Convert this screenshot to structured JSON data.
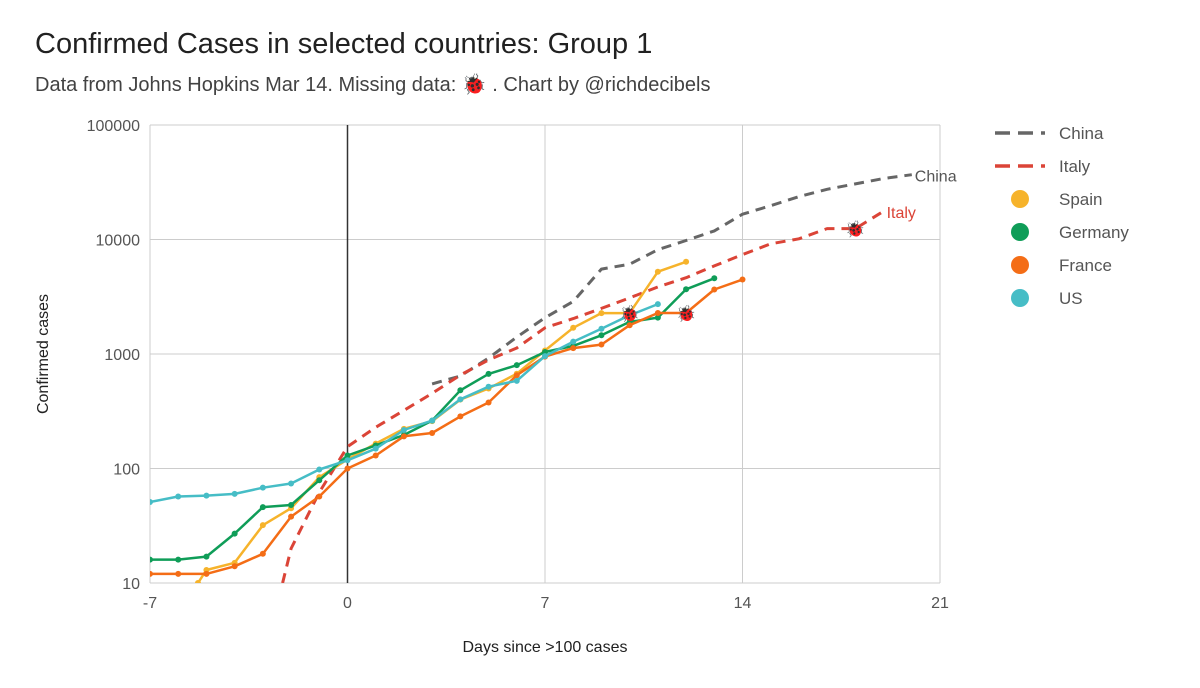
{
  "chart_data": {
    "type": "line",
    "title": "Confirmed Cases in selected countries: Group 1",
    "subtitle": "Data from Johns Hopkins Mar 14. Missing data: 🐞 . Chart by @richdecibels",
    "xlabel": "Days since >100 cases",
    "ylabel": "Confirmed cases",
    "xlim": [
      -7,
      21
    ],
    "ylim": [
      10,
      100000
    ],
    "yscale": "log",
    "xticks": [
      -7,
      0,
      7,
      14,
      21
    ],
    "xtick_labels": [
      "-7",
      "0",
      "7",
      "14",
      "21"
    ],
    "yticks": [
      10,
      100,
      1000,
      10000,
      100000
    ],
    "ytick_labels": [
      "10",
      "100",
      "1000",
      "10000",
      "100000"
    ],
    "grid": true,
    "legend_position": "right",
    "missing_data_marker": "🐞",
    "series": [
      {
        "name": "China",
        "color": "#666666",
        "style": "dashed",
        "marker": false,
        "end_label": "China",
        "x": [
          3,
          4,
          5,
          6,
          7,
          8,
          9,
          10,
          11,
          12,
          13,
          14,
          15,
          16,
          17,
          18,
          19,
          20
        ],
        "y": [
          548,
          643,
          920,
          1406,
          2075,
          2877,
          5509,
          6087,
          8141,
          9802,
          11891,
          16630,
          19716,
          23707,
          27440,
          30587,
          34110,
          36814
        ]
      },
      {
        "name": "Italy",
        "color": "#db4437",
        "style": "dashed",
        "marker": false,
        "end_label": "Italy",
        "x": [
          -2.3,
          -2,
          -1,
          0,
          1,
          2,
          3,
          4,
          5,
          6,
          7,
          8,
          9,
          10,
          11,
          12,
          13,
          14,
          15,
          16,
          17,
          18,
          19
        ],
        "y": [
          10,
          20,
          62,
          155,
          229,
          322,
          453,
          655,
          888,
          1128,
          1694,
          2036,
          2502,
          3089,
          3858,
          4636,
          5883,
          7375,
          9172,
          10149,
          12462,
          12462,
          17660
        ]
      },
      {
        "name": "Spain",
        "color": "#f6b32b",
        "style": "solid",
        "marker": true,
        "x": [
          -5.3,
          -5,
          -4,
          -3,
          -2,
          -1,
          0,
          1,
          2,
          3,
          4,
          5,
          6,
          7,
          8,
          9,
          10,
          11,
          12
        ],
        "y": [
          10,
          13,
          15,
          32,
          45,
          84,
          120,
          165,
          222,
          259,
          400,
          500,
          673,
          1073,
          1695,
          2277,
          2277,
          5232,
          6391
        ]
      },
      {
        "name": "Germany",
        "color": "#0f9d58",
        "style": "solid",
        "marker": true,
        "x": [
          -7,
          -6,
          -5,
          -4,
          -3,
          -2,
          -1,
          0,
          1,
          2,
          3,
          4,
          5,
          6,
          7,
          8,
          9,
          10,
          11,
          12,
          13
        ],
        "y": [
          16,
          16,
          17,
          27,
          46,
          48,
          79,
          130,
          159,
          196,
          262,
          482,
          670,
          799,
          1040,
          1176,
          1457,
          1908,
          2078,
          3675,
          4585
        ]
      },
      {
        "name": "France",
        "color": "#f46d16",
        "style": "solid",
        "marker": true,
        "x": [
          -7,
          -6,
          -5,
          -4,
          -3,
          -2,
          -1,
          0,
          1,
          2,
          3,
          4,
          5,
          6,
          7,
          8,
          9,
          10,
          11,
          12,
          13,
          14
        ],
        "y": [
          12,
          12,
          12,
          14,
          18,
          38,
          57,
          100,
          130,
          191,
          204,
          285,
          377,
          653,
          949,
          1126,
          1209,
          1784,
          2281,
          2281,
          3661,
          4469
        ]
      },
      {
        "name": "US",
        "color": "#46bdc6",
        "style": "solid",
        "marker": true,
        "x": [
          -7,
          -6,
          -5,
          -4,
          -3,
          -2,
          -1,
          0,
          1,
          2,
          3,
          4,
          5,
          6,
          7,
          8,
          9,
          10,
          11
        ],
        "y": [
          51,
          57,
          58,
          60,
          68,
          74,
          98,
          118,
          149,
          217,
          262,
          402,
          518,
          583,
          959,
          1281,
          1663,
          2179,
          2726
        ]
      }
    ],
    "annotations": [
      {
        "text": "🐞",
        "x": 10,
        "y": 2277
      },
      {
        "text": "🐞",
        "x": 12,
        "y": 2281
      },
      {
        "text": "🐞",
        "x": 18,
        "y": 12462
      }
    ]
  }
}
